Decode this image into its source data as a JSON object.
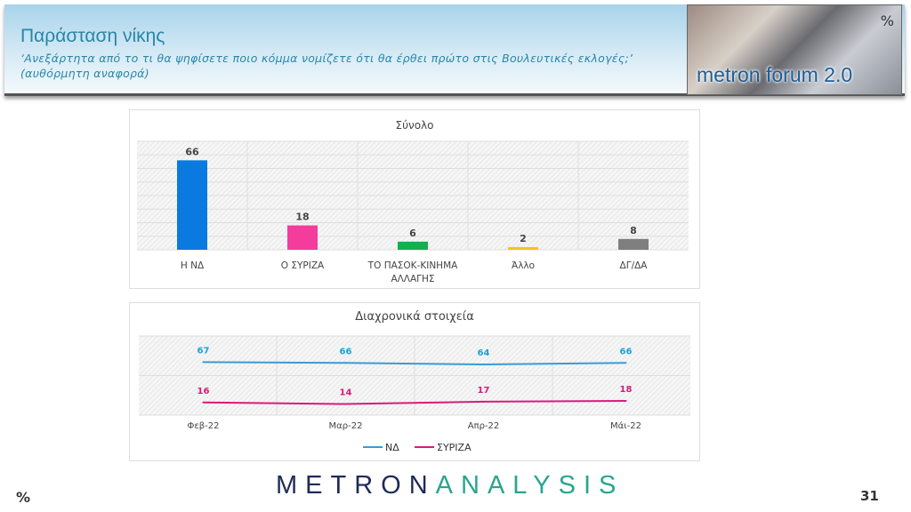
{
  "header": {
    "title": "Παράσταση νίκης",
    "subtitle": "‘Ανεξάρτητα από το τι θα ψηφίσετε ποιο κόμμα νομίζετε ότι θα έρθει πρώτο στις Βουλευτικές εκλογές;’ (αυθόρμητη αναφορά)",
    "logo_text": "metron forum 2.0",
    "logo_symbol": "%"
  },
  "chart_data": [
    {
      "type": "bar",
      "title": "Σύνολο",
      "categories": [
        "Η ΝΔ",
        "Ο ΣΥΡΙΖΑ",
        "ΤΟ ΠΑΣΟΚ-ΚΙΝΗΜΑ ΑΛΛΑΓΗΣ",
        "Άλλο",
        "ΔΓ/ΔΑ"
      ],
      "values": [
        66,
        18,
        6,
        2,
        8
      ],
      "colors": [
        "#0a7ae0",
        "#f43c9c",
        "#12b04f",
        "#f5c518",
        "#7f7f7f"
      ],
      "ylim": [
        0,
        80
      ],
      "grid": true
    },
    {
      "type": "line",
      "title": "Διαχρονικά στοιχεία",
      "categories": [
        "Φεβ-22",
        "Μαρ-22",
        "Απρ-22",
        "Μάι-22"
      ],
      "series": [
        {
          "name": "ΝΔ",
          "values": [
            67,
            66,
            64,
            66
          ],
          "color": "#3a9ad9",
          "label_color": "#1aa0d8"
        },
        {
          "name": "ΣΥΡΙΖΑ",
          "values": [
            16,
            14,
            17,
            18
          ],
          "color": "#d81b7a",
          "label_color": "#d81b7a"
        }
      ],
      "ylim": [
        0,
        100
      ],
      "grid": true,
      "legend": "bottom"
    }
  ],
  "footer": {
    "brand_a": "METRON",
    "brand_b": "ANALYSIS",
    "percent": "%",
    "page": "31"
  }
}
